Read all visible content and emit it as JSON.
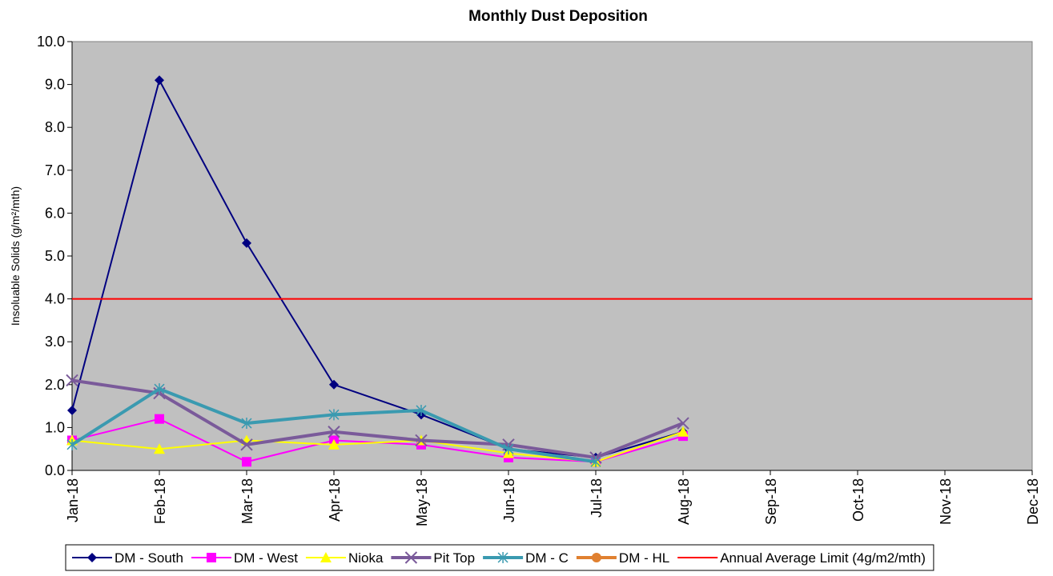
{
  "chart_data": {
    "type": "line",
    "title": "Monthly Dust Deposition",
    "y_label": "Insoluable Solids (g/m²/mth)",
    "categories": [
      "Jan-18",
      "Feb-18",
      "Mar-18",
      "Apr-18",
      "May-18",
      "Jun-18",
      "Jul-18",
      "Aug-18",
      "Sep-18",
      "Oct-18",
      "Nov-18",
      "Dec-18"
    ],
    "series": [
      {
        "name": "DM - South",
        "color": "#000080",
        "marker": "diamond",
        "line_width": 2,
        "values": [
          1.4,
          9.1,
          5.3,
          2.0,
          1.3,
          0.5,
          0.3,
          0.9,
          null,
          null,
          null,
          null
        ]
      },
      {
        "name": "DM - West",
        "color": "#ff00ff",
        "marker": "square",
        "line_width": 2,
        "values": [
          0.7,
          1.2,
          0.2,
          0.7,
          0.6,
          0.3,
          0.2,
          0.8,
          null,
          null,
          null,
          null
        ]
      },
      {
        "name": "Nioka",
        "color": "#ffff00",
        "marker": "triangle",
        "line_width": 2,
        "values": [
          0.7,
          0.5,
          0.7,
          0.6,
          0.7,
          0.4,
          0.2,
          0.9,
          null,
          null,
          null,
          null
        ]
      },
      {
        "name": "Pit Top",
        "color": "#7a5a9a",
        "marker": "x",
        "line_width": 4,
        "values": [
          2.1,
          1.8,
          0.6,
          0.9,
          0.7,
          0.6,
          0.3,
          1.1,
          null,
          null,
          null,
          null
        ]
      },
      {
        "name": "DM - C",
        "color": "#3a9ab0",
        "marker": "asterisk",
        "line_width": 4,
        "values": [
          0.6,
          1.9,
          1.1,
          1.3,
          1.4,
          0.5,
          0.2,
          null,
          null,
          null,
          null,
          null
        ]
      },
      {
        "name": "DM - HL",
        "color": "#e08030",
        "marker": "circle",
        "line_width": 4,
        "values": [
          null,
          null,
          null,
          null,
          null,
          null,
          null,
          null,
          null,
          null,
          null,
          null
        ]
      },
      {
        "name": "Annual Average Limit (4g/m2/mth)",
        "color": "#ff0000",
        "marker": "none",
        "line_width": 2,
        "values": [
          4,
          4,
          4,
          4,
          4,
          4,
          4,
          4,
          4,
          4,
          4,
          4
        ]
      }
    ],
    "ylim": [
      0,
      10
    ],
    "yticks": [
      {
        "value": 0,
        "label": "0.0"
      },
      {
        "value": 1,
        "label": "1.0"
      },
      {
        "value": 2,
        "label": "2.0"
      },
      {
        "value": 3,
        "label": "3.0"
      },
      {
        "value": 4,
        "label": "4.0"
      },
      {
        "value": 5,
        "label": "5.0"
      },
      {
        "value": 6,
        "label": "6.0"
      },
      {
        "value": 7,
        "label": "7.0"
      },
      {
        "value": 8,
        "label": "8.0"
      },
      {
        "value": 9,
        "label": "9.0"
      },
      {
        "value": 10,
        "label": "10.0"
      }
    ],
    "plot_background": "#c0c0c0",
    "legend": "bottom"
  }
}
